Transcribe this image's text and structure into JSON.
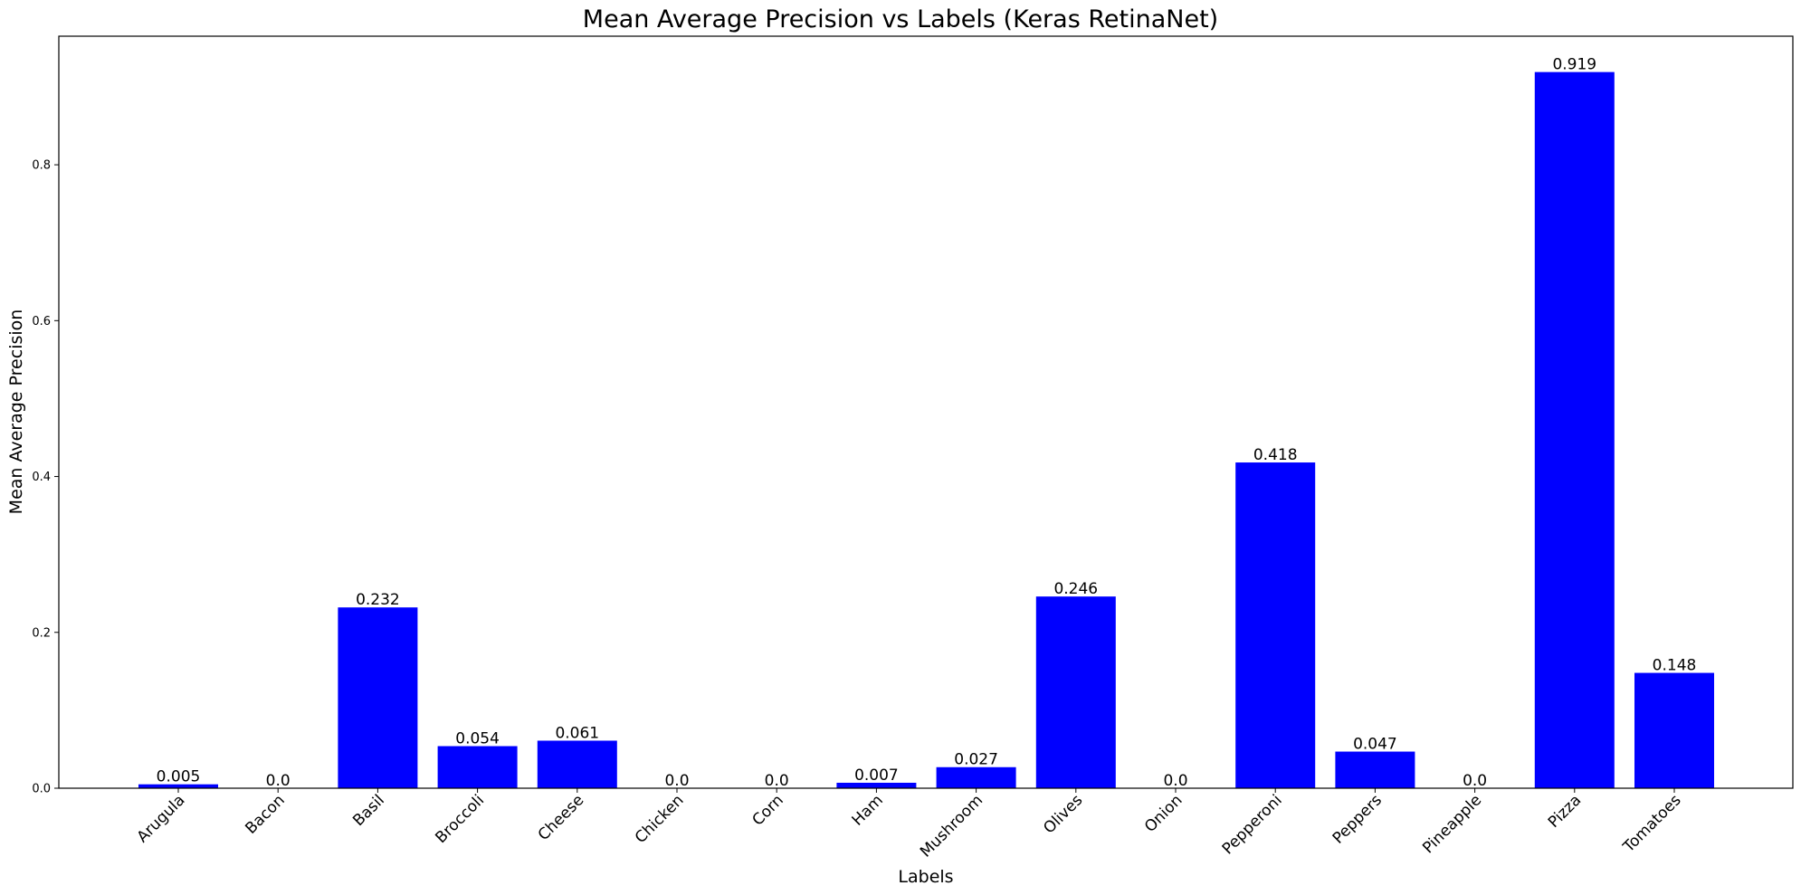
{
  "chart_data": {
    "type": "bar",
    "title": "Mean Average Precision vs Labels (Keras RetinaNet)",
    "xlabel": "Labels",
    "ylabel": "Mean Average Precision",
    "ylim": [
      0,
      0.965
    ],
    "yticks": [
      0.0,
      0.2,
      0.4,
      0.6,
      0.8
    ],
    "ytick_labels": [
      "0.0",
      "0.2",
      "0.4",
      "0.6",
      "0.8"
    ],
    "grid": false,
    "bar_color": "#0000ff",
    "categories": [
      "Arugula",
      "Bacon",
      "Basil",
      "Broccoli",
      "Cheese",
      "Chicken",
      "Corn",
      "Ham",
      "Mushroom",
      "Olives",
      "Onion",
      "Pepperoni",
      "Peppers",
      "Pineapple",
      "Pizza",
      "Tomatoes"
    ],
    "values": [
      0.005,
      0.0,
      0.232,
      0.054,
      0.061,
      0.0,
      0.0,
      0.007,
      0.027,
      0.246,
      0.0,
      0.418,
      0.047,
      0.0,
      0.919,
      0.148
    ],
    "value_labels": [
      "0.005",
      "0.0",
      "0.232",
      "0.054",
      "0.061",
      "0.0",
      "0.0",
      "0.007",
      "0.027",
      "0.246",
      "0.0",
      "0.418",
      "0.047",
      "0.0",
      "0.919",
      "0.148"
    ]
  }
}
